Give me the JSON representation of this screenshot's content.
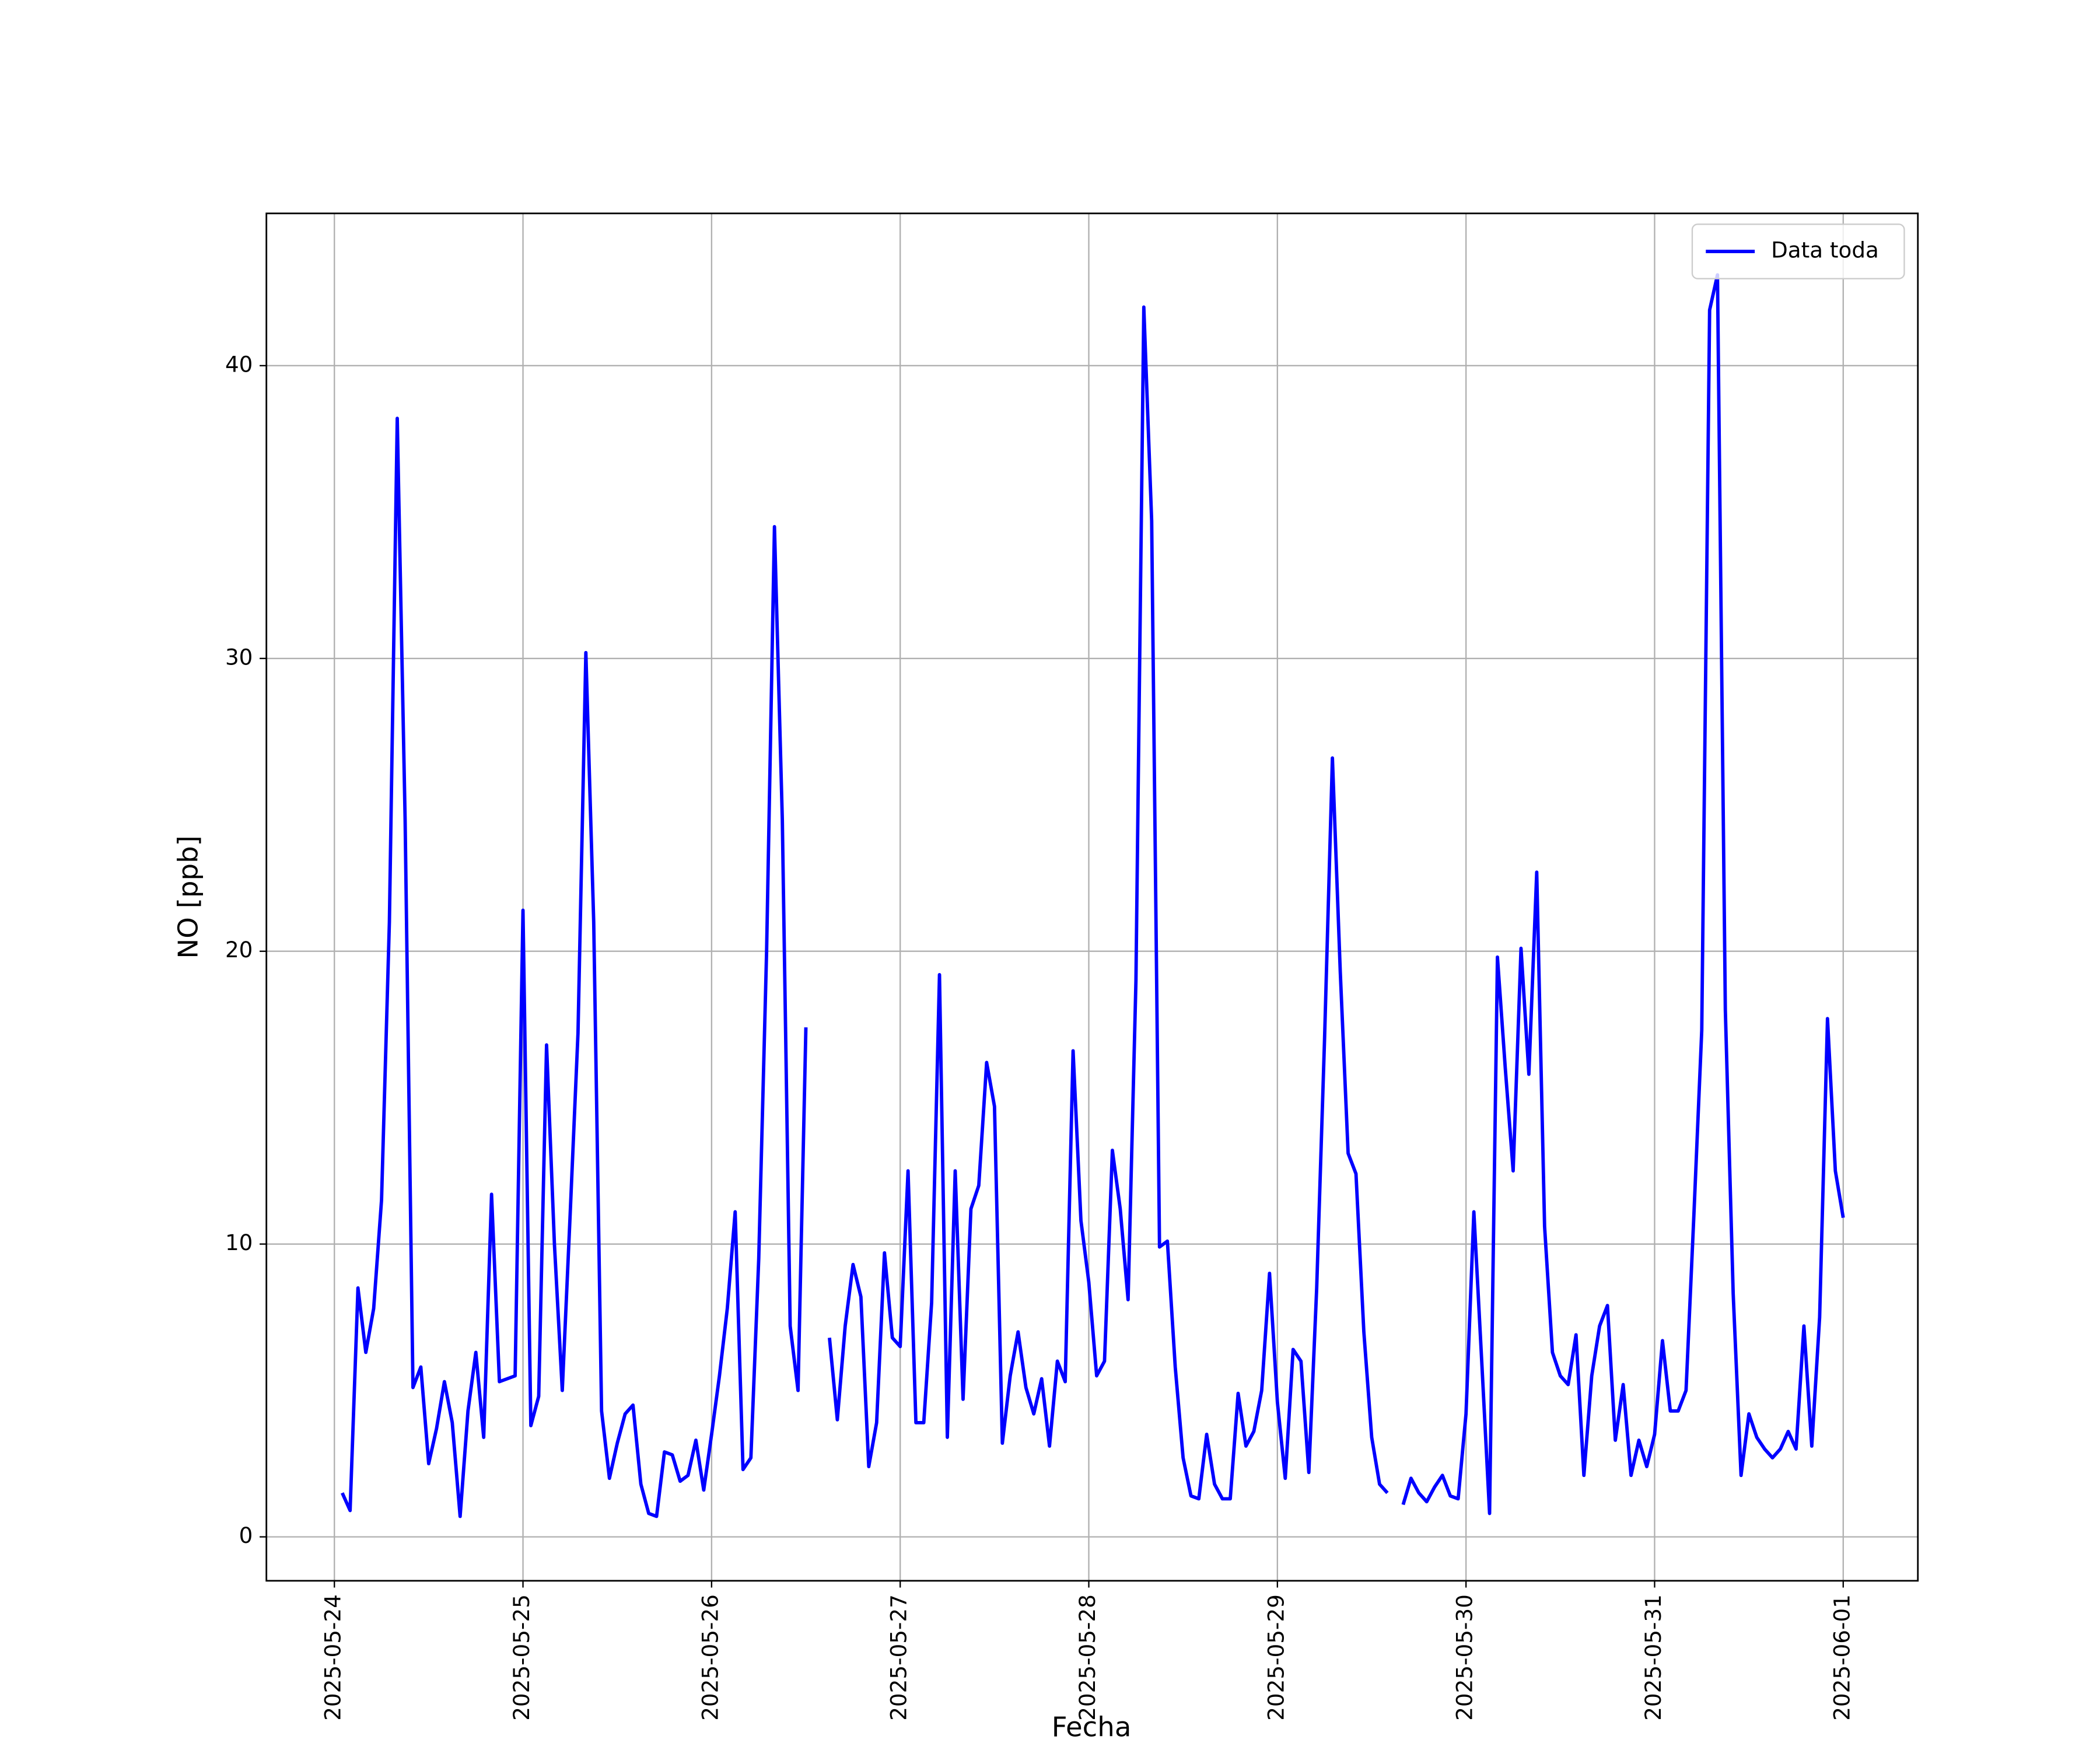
{
  "chart_data": {
    "type": "line",
    "xlabel": "Fecha",
    "ylabel": "NO [ppb]",
    "x": [
      "2025-05-24 01:00",
      "2025-05-24 02:00",
      "2025-05-24 03:00",
      "2025-05-24 04:00",
      "2025-05-24 05:00",
      "2025-05-24 06:00",
      "2025-05-24 07:00",
      "2025-05-24 08:00",
      "2025-05-24 09:00",
      "2025-05-24 10:00",
      "2025-05-24 11:00",
      "2025-05-24 12:00",
      "2025-05-24 13:00",
      "2025-05-24 14:00",
      "2025-05-24 15:00",
      "2025-05-24 16:00",
      "2025-05-24 17:00",
      "2025-05-24 18:00",
      "2025-05-24 19:00",
      "2025-05-24 20:00",
      "2025-05-24 21:00",
      "2025-05-24 22:00",
      "2025-05-24 23:00",
      "2025-05-25 00:00",
      "2025-05-25 01:00",
      "2025-05-25 02:00",
      "2025-05-25 03:00",
      "2025-05-25 04:00",
      "2025-05-25 05:00",
      "2025-05-25 06:00",
      "2025-05-25 07:00",
      "2025-05-25 08:00",
      "2025-05-25 09:00",
      "2025-05-25 10:00",
      "2025-05-25 11:00",
      "2025-05-25 12:00",
      "2025-05-25 13:00",
      "2025-05-25 14:00",
      "2025-05-25 15:00",
      "2025-05-25 16:00",
      "2025-05-25 17:00",
      "2025-05-25 18:00",
      "2025-05-25 19:00",
      "2025-05-25 20:00",
      "2025-05-25 21:00",
      "2025-05-25 22:00",
      "2025-05-25 23:00",
      "2025-05-26 00:00",
      "2025-05-26 01:00",
      "2025-05-26 02:00",
      "2025-05-26 03:00",
      "2025-05-26 04:00",
      "2025-05-26 05:00",
      "2025-05-26 06:00",
      "2025-05-26 07:00",
      "2025-05-26 08:00",
      "2025-05-26 09:00",
      "2025-05-26 10:00",
      "2025-05-26 11:00",
      "2025-05-26 12:00",
      "2025-05-26 13:00",
      "2025-05-26 14:00",
      "2025-05-26 15:00",
      "2025-05-26 16:00",
      "2025-05-26 17:00",
      "2025-05-26 18:00",
      "2025-05-26 19:00",
      "2025-05-26 20:00",
      "2025-05-26 21:00",
      "2025-05-26 22:00",
      "2025-05-26 23:00",
      "2025-05-27 00:00",
      "2025-05-27 01:00",
      "2025-05-27 02:00",
      "2025-05-27 03:00",
      "2025-05-27 04:00",
      "2025-05-27 05:00",
      "2025-05-27 06:00",
      "2025-05-27 07:00",
      "2025-05-27 08:00",
      "2025-05-27 09:00",
      "2025-05-27 10:00",
      "2025-05-27 11:00",
      "2025-05-27 12:00",
      "2025-05-27 13:00",
      "2025-05-27 14:00",
      "2025-05-27 15:00",
      "2025-05-27 16:00",
      "2025-05-27 17:00",
      "2025-05-27 18:00",
      "2025-05-27 19:00",
      "2025-05-27 20:00",
      "2025-05-27 21:00",
      "2025-05-27 22:00",
      "2025-05-27 23:00",
      "2025-05-28 00:00",
      "2025-05-28 01:00",
      "2025-05-28 02:00",
      "2025-05-28 03:00",
      "2025-05-28 04:00",
      "2025-05-28 05:00",
      "2025-05-28 06:00",
      "2025-05-28 07:00",
      "2025-05-28 08:00",
      "2025-05-28 09:00",
      "2025-05-28 10:00",
      "2025-05-28 11:00",
      "2025-05-28 12:00",
      "2025-05-28 13:00",
      "2025-05-28 14:00",
      "2025-05-28 15:00",
      "2025-05-28 16:00",
      "2025-05-28 17:00",
      "2025-05-28 18:00",
      "2025-05-28 19:00",
      "2025-05-28 20:00",
      "2025-05-28 21:00",
      "2025-05-28 22:00",
      "2025-05-28 23:00",
      "2025-05-29 00:00",
      "2025-05-29 01:00",
      "2025-05-29 02:00",
      "2025-05-29 03:00",
      "2025-05-29 04:00",
      "2025-05-29 05:00",
      "2025-05-29 06:00",
      "2025-05-29 07:00",
      "2025-05-29 08:00",
      "2025-05-29 09:00",
      "2025-05-29 10:00",
      "2025-05-29 11:00",
      "2025-05-29 12:00",
      "2025-05-29 13:00",
      "2025-05-29 14:00",
      "2025-05-29 15:00",
      "2025-05-29 16:00",
      "2025-05-29 17:00",
      "2025-05-29 18:00",
      "2025-05-29 19:00",
      "2025-05-29 20:00",
      "2025-05-29 21:00",
      "2025-05-29 22:00",
      "2025-05-29 23:00",
      "2025-05-30 00:00",
      "2025-05-30 01:00",
      "2025-05-30 02:00",
      "2025-05-30 03:00",
      "2025-05-30 04:00",
      "2025-05-30 05:00",
      "2025-05-30 06:00",
      "2025-05-30 07:00",
      "2025-05-30 08:00",
      "2025-05-30 09:00",
      "2025-05-30 10:00",
      "2025-05-30 11:00",
      "2025-05-30 12:00",
      "2025-05-30 13:00",
      "2025-05-30 14:00",
      "2025-05-30 15:00",
      "2025-05-30 16:00",
      "2025-05-30 17:00",
      "2025-05-30 18:00",
      "2025-05-30 19:00",
      "2025-05-30 20:00",
      "2025-05-30 21:00",
      "2025-05-30 22:00",
      "2025-05-30 23:00",
      "2025-05-31 00:00",
      "2025-05-31 01:00",
      "2025-05-31 02:00",
      "2025-05-31 03:00",
      "2025-05-31 04:00",
      "2025-05-31 05:00",
      "2025-05-31 06:00",
      "2025-05-31 07:00",
      "2025-05-31 08:00",
      "2025-05-31 09:00",
      "2025-05-31 10:00",
      "2025-05-31 11:00",
      "2025-05-31 12:00",
      "2025-05-31 13:00",
      "2025-05-31 14:00",
      "2025-05-31 15:00",
      "2025-05-31 16:00",
      "2025-05-31 17:00",
      "2025-05-31 18:00",
      "2025-05-31 19:00",
      "2025-05-31 20:00",
      "2025-05-31 21:00",
      "2025-05-31 22:00",
      "2025-05-31 23:00",
      "2025-06-01 00:00"
    ],
    "series": [
      {
        "name": "Data toda",
        "color": "#0000ff",
        "values": [
          1.5,
          0.9,
          8.5,
          6.3,
          7.8,
          11.5,
          21,
          38.2,
          24.5,
          5.1,
          5.8,
          2.5,
          3.7,
          5.3,
          3.9,
          0.7,
          4.3,
          6.3,
          3.4,
          11.7,
          5.3,
          5.4,
          5.5,
          21.4,
          3.8,
          4.8,
          16.8,
          10,
          5,
          11,
          17.2,
          30.2,
          21,
          4.3,
          2.0,
          3.2,
          4.2,
          4.5,
          1.8,
          0.8,
          0.7,
          2.9,
          2.8,
          1.9,
          2.1,
          3.3,
          1.6,
          3.5,
          5.5,
          7.8,
          11.1,
          2.3,
          2.7,
          9.5,
          20,
          34.5,
          24.5,
          7.2,
          5.0,
          17.4,
          null,
          null,
          6.8,
          4.0,
          7.2,
          9.3,
          8.2,
          2.4,
          3.9,
          9.7,
          6.8,
          6.5,
          12.5,
          3.9,
          3.9,
          8,
          19.2,
          3.4,
          12.5,
          4.7,
          11.2,
          12,
          16.2,
          14.7,
          3.2,
          5.5,
          7,
          5.1,
          4.2,
          5.4,
          3.1,
          6,
          5.3,
          16.6,
          10.8,
          8.7,
          5.5,
          6,
          13.2,
          11.2,
          8.1,
          19,
          42,
          34.7,
          9.9,
          10.1,
          5.8,
          2.7,
          1.4,
          1.3,
          3.5,
          1.8,
          1.3,
          1.3,
          4.9,
          3.1,
          3.6,
          5,
          9,
          4.6,
          2,
          6.4,
          6,
          2.2,
          8.5,
          17,
          26.6,
          19.3,
          13.1,
          12.4,
          7,
          3.4,
          1.8,
          1.5,
          null,
          1.1,
          2.0,
          1.5,
          1.2,
          1.7,
          2.1,
          1.4,
          1.3,
          4.2,
          11.1,
          6,
          0.8,
          19.8,
          16,
          12.5,
          20.1,
          15.8,
          22.7,
          10.6,
          6.3,
          5.5,
          5.2,
          6.9,
          2.1,
          5.5,
          7.2,
          7.9,
          3.3,
          5.2,
          2.1,
          3.3,
          2.4,
          3.5,
          6.7,
          4.3,
          4.3,
          5,
          11,
          17.3,
          41.9,
          43.1,
          18,
          8.3,
          2.1,
          4.2,
          3.4,
          3,
          2.7,
          3,
          3.6,
          3,
          7.2,
          3.1,
          7.5,
          17.7,
          12.5,
          10.9
        ]
      }
    ],
    "xlim": [
      "2025-05-23 15:21",
      "2025-06-01 09:30"
    ],
    "xticks": [
      "2025-05-24",
      "2025-05-25",
      "2025-05-26",
      "2025-05-27",
      "2025-05-28",
      "2025-05-29",
      "2025-05-30",
      "2025-05-31",
      "2025-06-01"
    ],
    "ylim": [
      -1.5,
      45.2
    ],
    "yticks": [
      0,
      10,
      20,
      30,
      40
    ],
    "grid": true,
    "legend": "upper right"
  }
}
